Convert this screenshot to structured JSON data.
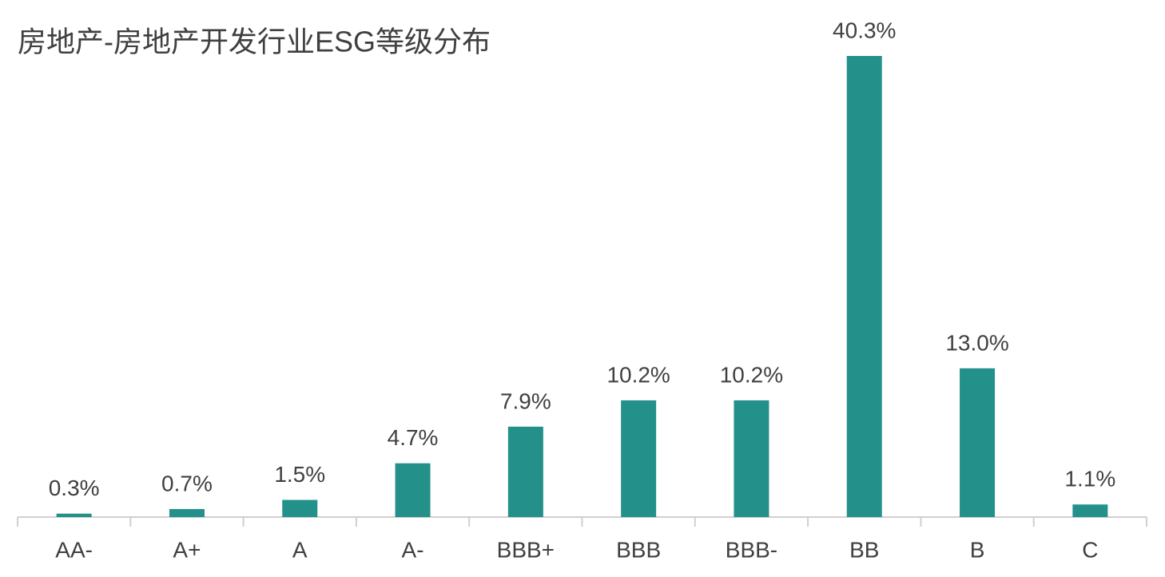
{
  "chart_data": {
    "type": "bar",
    "title": "房地产-房地产开发行业ESG等级分布",
    "categories": [
      "AA-",
      "A+",
      "A",
      "A-",
      "BBB+",
      "BBB",
      "BBB-",
      "BB",
      "B",
      "C"
    ],
    "values": [
      0.3,
      0.7,
      1.5,
      4.7,
      7.9,
      10.2,
      10.2,
      40.3,
      13.0,
      1.1
    ],
    "value_labels": [
      "0.3%",
      "0.7%",
      "1.5%",
      "4.7%",
      "7.9%",
      "10.2%",
      "10.2%",
      "40.3%",
      "13.0%",
      "1.1%"
    ],
    "color": "#23908a"
  }
}
